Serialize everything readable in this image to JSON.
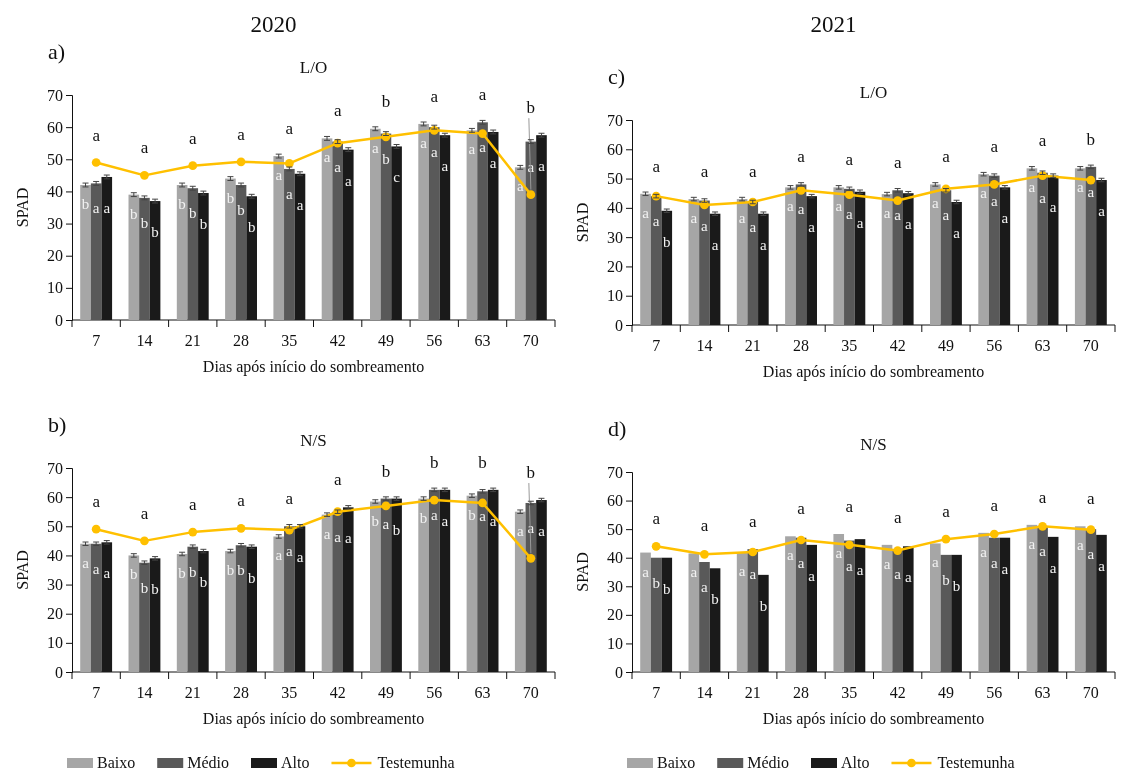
{
  "chart_data": [
    {
      "type": "bar",
      "subtitle": "2020",
      "title": "L/O",
      "annotations": [
        "a)"
      ],
      "xlabel": "Dias após início  do sombreamento",
      "ylabel": "SPAD",
      "categories": [
        "7",
        "14",
        "21",
        "28",
        "35",
        "42",
        "49",
        "56",
        "63",
        "70"
      ],
      "ylim": [
        0,
        70
      ],
      "yticks": [
        0,
        10,
        20,
        30,
        40,
        50,
        60,
        70
      ],
      "legend": false,
      "series": [
        {
          "color": "#a6a6a6",
          "values": [
            42,
            39,
            42,
            44,
            51,
            56.5,
            59.5,
            61,
            59,
            47.5
          ],
          "errors": [
            0.6,
            0.6,
            0.6,
            0.6,
            0.6,
            0.6,
            0.6,
            0.6,
            0.6,
            0.6
          ],
          "value_labels": [
            "b",
            "b",
            "b",
            "b",
            "a",
            "a",
            "a",
            "a",
            "a",
            "a"
          ]
        },
        {
          "color": "#595959",
          "values": [
            42.5,
            38,
            41,
            42,
            47,
            55.5,
            58,
            60,
            61.5,
            55.5
          ],
          "errors": [
            0.6,
            0.6,
            0.6,
            0.6,
            0.6,
            0.6,
            0.6,
            0.6,
            0.6,
            0.6
          ],
          "value_labels": [
            "a",
            "b",
            "b",
            "b",
            "a",
            "a",
            "b",
            "a",
            "a",
            "a"
          ]
        },
        {
          "color": "#1a1a1a",
          "values": [
            44.5,
            37,
            39.5,
            38.5,
            45.5,
            53,
            54,
            57.5,
            58.5,
            57.5
          ],
          "errors": [
            0.6,
            0.6,
            0.6,
            0.6,
            0.6,
            0.6,
            0.6,
            0.6,
            0.6,
            0.6
          ],
          "value_labels": [
            "a",
            "b",
            "b",
            "b",
            "a",
            "a",
            "c",
            "a",
            "a",
            "a"
          ]
        },
        {
          "type": "line",
          "color": "#ffc000",
          "marker": "circle",
          "values": [
            49,
            45,
            48,
            49.2,
            48.7,
            55,
            57,
            59,
            58,
            39
          ],
          "value_labels": [
            "a",
            "a",
            "a",
            "a",
            "a",
            "a",
            "b",
            "a",
            "a",
            "b"
          ]
        }
      ]
    },
    {
      "type": "bar",
      "subtitle": "2021",
      "title": "L/O",
      "annotations": [
        "c)"
      ],
      "xlabel": "Dias após início  do sombreamento",
      "ylabel": "SPAD",
      "categories": [
        "7",
        "14",
        "21",
        "28",
        "35",
        "42",
        "49",
        "56",
        "63",
        "70"
      ],
      "ylim": [
        0,
        70
      ],
      "yticks": [
        0,
        10,
        20,
        30,
        40,
        50,
        60,
        70
      ],
      "legend": false,
      "series": [
        {
          "color": "#a6a6a6",
          "values": [
            44.8,
            43,
            43,
            47,
            47,
            44.7,
            48,
            51.5,
            53.5,
            53.5
          ],
          "errors": [
            0.6,
            0.6,
            0.6,
            0.6,
            0.6,
            0.6,
            0.6,
            0.6,
            0.6,
            0.6
          ],
          "value_labels": [
            "a",
            "a",
            "a",
            "a",
            "a",
            "a",
            "a",
            "a",
            "a",
            "a"
          ]
        },
        {
          "color": "#595959",
          "values": [
            44,
            42.5,
            42,
            48,
            46.5,
            46,
            46,
            51,
            52,
            54
          ],
          "errors": [
            0.6,
            0.6,
            0.6,
            0.6,
            0.6,
            0.6,
            0.6,
            0.6,
            0.6,
            0.6
          ],
          "value_labels": [
            "a",
            "a",
            "a",
            "a",
            "a",
            "a",
            "a",
            "a",
            "a",
            "a"
          ]
        },
        {
          "color": "#1a1a1a",
          "values": [
            39,
            38,
            38,
            44,
            45.5,
            45,
            42,
            47,
            51,
            49.5
          ],
          "errors": [
            0.6,
            0.6,
            0.6,
            0.6,
            0.6,
            0.6,
            0.6,
            0.6,
            0.6,
            0.6
          ],
          "value_labels": [
            "b",
            "a",
            "a",
            "a",
            "a",
            "a",
            "a",
            "a",
            "a",
            "a"
          ]
        },
        {
          "type": "line",
          "color": "#ffc000",
          "marker": "circle",
          "values": [
            44,
            41,
            42,
            46,
            44.5,
            42.5,
            46.5,
            48,
            51,
            49.5
          ],
          "value_labels": [
            "a",
            "a",
            "a",
            "a",
            "a",
            "a",
            "a",
            "a",
            "a",
            "b"
          ]
        }
      ]
    },
    {
      "type": "bar",
      "title": "N/S",
      "annotations": [
        "b)"
      ],
      "xlabel": "Dias após início  do sombreamento",
      "ylabel": "SPAD",
      "categories": [
        "7",
        "14",
        "21",
        "28",
        "35",
        "42",
        "49",
        "56",
        "63",
        "70"
      ],
      "ylim": [
        0,
        70
      ],
      "yticks": [
        0,
        10,
        20,
        30,
        40,
        50,
        60,
        70
      ],
      "legend": "bottom",
      "series": [
        {
          "name": "Baixo",
          "color": "#a6a6a6",
          "values": [
            44,
            40,
            40.5,
            41.5,
            46.5,
            54,
            58.5,
            59.5,
            60.5,
            55
          ],
          "errors": [
            0.6,
            0.6,
            0.6,
            0.6,
            0.6,
            0.6,
            0.6,
            0.6,
            0.6,
            0.6
          ],
          "value_labels": [
            "a",
            "b",
            "b",
            "b",
            "a",
            "a",
            "b",
            "b",
            "b",
            "a"
          ]
        },
        {
          "name": "Médio",
          "color": "#595959",
          "values": [
            44,
            37.5,
            43,
            43.5,
            50,
            55,
            59.5,
            62.5,
            62,
            58
          ],
          "errors": [
            0.6,
            0.6,
            0.6,
            0.6,
            0.6,
            0.6,
            0.6,
            0.6,
            0.6,
            0.6
          ],
          "value_labels": [
            "a",
            "b",
            "b",
            "b",
            "a",
            "a",
            "a",
            "a",
            "a",
            "a"
          ]
        },
        {
          "name": "Alto",
          "color": "#1a1a1a",
          "values": [
            44.5,
            39,
            41.5,
            43,
            50,
            56.5,
            59.5,
            62.5,
            62.5,
            59
          ],
          "errors": [
            0.6,
            0.6,
            0.6,
            0.6,
            0.6,
            0.6,
            0.6,
            0.6,
            0.6,
            0.6
          ],
          "value_labels": [
            "a",
            "b",
            "b",
            "b",
            "a",
            "a",
            "b",
            "a",
            "a",
            "a"
          ]
        },
        {
          "name": "Testemunha",
          "type": "line",
          "color": "#ffc000",
          "marker": "circle",
          "values": [
            49,
            45,
            48,
            49.3,
            48.7,
            55,
            57,
            59,
            58,
            39
          ],
          "value_labels": [
            "a",
            "a",
            "a",
            "a",
            "a",
            "a",
            "b",
            "b",
            "b",
            "b"
          ]
        }
      ]
    },
    {
      "type": "bar",
      "title": "N/S",
      "annotations": [
        "d)"
      ],
      "xlabel": "Dias após início  do sombreamento",
      "ylabel": "SPAD",
      "categories": [
        "7",
        "14",
        "21",
        "28",
        "35",
        "42",
        "49",
        "56",
        "63",
        "70"
      ],
      "ylim": [
        0,
        70
      ],
      "yticks": [
        0,
        10,
        20,
        30,
        40,
        50,
        60,
        70
      ],
      "legend": "bottom",
      "series": [
        {
          "name": "Baixo",
          "color": "#a6a6a6",
          "values": [
            41.8,
            41.5,
            42,
            47.5,
            48.3,
            44.5,
            45,
            48.7,
            51.5,
            51
          ],
          "value_labels": [
            "a",
            "a",
            "a",
            "a",
            "a",
            "a",
            "a",
            "a",
            "a",
            "a"
          ]
        },
        {
          "name": "Médio",
          "color": "#595959",
          "values": [
            40,
            38.5,
            43,
            47,
            46,
            43,
            41,
            47,
            51,
            50
          ],
          "value_labels": [
            "b",
            "a",
            "a",
            "a",
            "a",
            "a",
            "b",
            "a",
            "a",
            "a"
          ]
        },
        {
          "name": "Alto",
          "color": "#1a1a1a",
          "values": [
            40,
            36.3,
            34,
            44.5,
            46.5,
            44,
            41,
            47,
            47.3,
            48
          ],
          "value_labels": [
            "b",
            "b",
            "b",
            "a",
            "a",
            "a",
            "b",
            "a",
            "a",
            "a"
          ]
        },
        {
          "name": "Testemunha",
          "type": "line",
          "color": "#ffc000",
          "marker": "circle",
          "values": [
            44,
            41.2,
            42,
            46.2,
            44.5,
            42.5,
            46.5,
            48.3,
            51,
            49.8
          ],
          "value_labels": [
            "a",
            "a",
            "a",
            "a",
            "a",
            "a",
            "a",
            "a",
            "a",
            "a"
          ]
        }
      ]
    }
  ]
}
